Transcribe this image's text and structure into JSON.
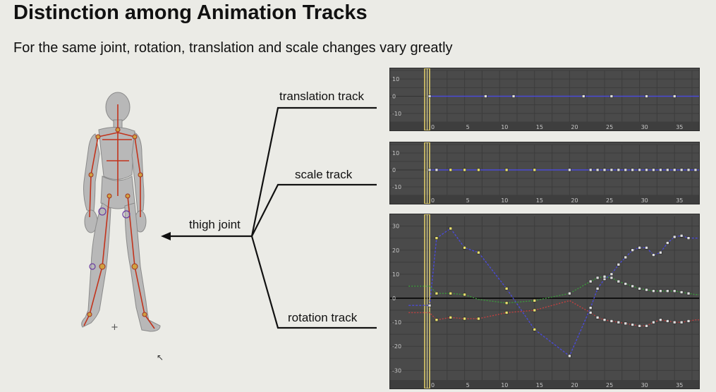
{
  "title": "Distinction among Animation Tracks",
  "subtitle": "For the same joint, rotation, translation and scale changes vary greatly",
  "labels": {
    "translation": "translation track",
    "scale": "scale track",
    "thigh": "thigh joint",
    "rotation": "rotation track"
  },
  "colors": {
    "panel_bg": "#4a4a4a",
    "grid": "#3a3a3a",
    "timeline_marker": "#e8d36a",
    "curve_blue": "#4a4ad6",
    "curve_red": "#c04040",
    "curve_green": "#3a9a3a",
    "key_white": "#dddddd",
    "key_yellow": "#e8e070"
  },
  "chart_data": [
    {
      "type": "line",
      "name": "translation",
      "ylim": [
        -15,
        15
      ],
      "xlim": [
        -3,
        40
      ],
      "yticks": [
        10,
        0,
        -10
      ],
      "xticks": [
        0,
        5,
        10,
        15,
        20,
        25,
        30,
        35
      ],
      "series": [
        {
          "color": "blue",
          "x": [
            0,
            8,
            12,
            22,
            26,
            31,
            35,
            39
          ],
          "y": [
            0,
            0,
            0,
            0,
            0,
            0,
            0,
            0
          ]
        }
      ]
    },
    {
      "type": "line",
      "name": "scale",
      "ylim": [
        -15,
        15
      ],
      "xlim": [
        -3,
        40
      ],
      "yticks": [
        10,
        0,
        -10
      ],
      "xticks": [
        0,
        5,
        10,
        15,
        20,
        25,
        30,
        35
      ],
      "series": [
        {
          "color": "blue",
          "x": [
            0,
            1,
            3,
            5,
            7,
            11,
            15,
            20,
            23,
            24,
            25,
            26,
            27,
            28,
            29,
            30,
            31,
            32,
            33,
            34,
            35,
            36,
            37,
            38,
            39
          ],
          "y": [
            0,
            0,
            0,
            0,
            0,
            0,
            0,
            0,
            0,
            0,
            0,
            0,
            0,
            0,
            0,
            0,
            0,
            0,
            0,
            0,
            0,
            0,
            0,
            0,
            0
          ],
          "key_colors": [
            "w",
            "w",
            "y",
            "y",
            "y",
            "y",
            "y",
            "w",
            "w",
            "w",
            "w",
            "w",
            "w",
            "w",
            "w",
            "w",
            "w",
            "w",
            "w",
            "w",
            "w",
            "w",
            "w",
            "w",
            "w"
          ]
        }
      ]
    },
    {
      "type": "line",
      "name": "rotation",
      "ylim": [
        -34,
        34
      ],
      "xlim": [
        -3,
        40
      ],
      "yticks": [
        30,
        20,
        10,
        0,
        -10,
        -20,
        -30
      ],
      "xticks": [
        0,
        5,
        10,
        15,
        20,
        25,
        30,
        35
      ],
      "series": [
        {
          "color": "blue",
          "x": [
            -3,
            0,
            1,
            3,
            5,
            7,
            11,
            15,
            20,
            23,
            24,
            25,
            26,
            27,
            28,
            29,
            30,
            31,
            32,
            33,
            34,
            35,
            36,
            37,
            38,
            39
          ],
          "y": [
            -3,
            -3,
            25,
            29,
            21,
            19,
            4,
            -13,
            -24,
            -4,
            4,
            8,
            10,
            14,
            17,
            20,
            21,
            21,
            18,
            19,
            23,
            25.5,
            26,
            25,
            25,
            25
          ],
          "keys": [
            0,
            1,
            3,
            5,
            7,
            11,
            15,
            20,
            23,
            24,
            25,
            26,
            27,
            28,
            29,
            30,
            31,
            32,
            33,
            34,
            35,
            36,
            37
          ]
        },
        {
          "color": "red",
          "x": [
            -3,
            0,
            1,
            3,
            5,
            7,
            11,
            15,
            20,
            23,
            24,
            25,
            26,
            27,
            28,
            29,
            30,
            31,
            32,
            33,
            34,
            35,
            36,
            37,
            38,
            39
          ],
          "y": [
            -6,
            -6,
            -9,
            -8,
            -8.5,
            -8.5,
            -6,
            -5,
            -1,
            -6,
            -8,
            -9,
            -9.5,
            -10,
            -10.5,
            -11,
            -11.5,
            -11.5,
            -10,
            -9,
            -9.5,
            -10,
            -10,
            -9.5,
            -9,
            -9
          ],
          "keys": [
            1,
            3,
            5,
            7,
            11,
            15,
            23,
            24,
            25,
            26,
            27,
            28,
            29,
            30,
            31,
            32,
            33,
            34,
            35,
            36,
            37
          ]
        },
        {
          "color": "green",
          "x": [
            -3,
            0,
            1,
            3,
            5,
            7,
            11,
            15,
            20,
            23,
            24,
            25,
            26,
            27,
            28,
            29,
            30,
            31,
            32,
            33,
            34,
            35,
            36,
            37,
            38,
            39
          ],
          "y": [
            5,
            5,
            2,
            2,
            1.5,
            -0.5,
            -2,
            -1,
            2,
            7,
            8.5,
            9,
            8.5,
            7,
            6,
            5,
            4,
            3.5,
            3,
            3,
            3,
            3,
            2.5,
            2,
            1.5,
            1.5
          ],
          "keys": [
            1,
            3,
            5,
            11,
            15,
            20,
            23,
            24,
            25,
            26,
            27,
            28,
            29,
            30,
            31,
            32,
            33,
            34,
            35,
            36,
            37
          ]
        }
      ]
    }
  ]
}
